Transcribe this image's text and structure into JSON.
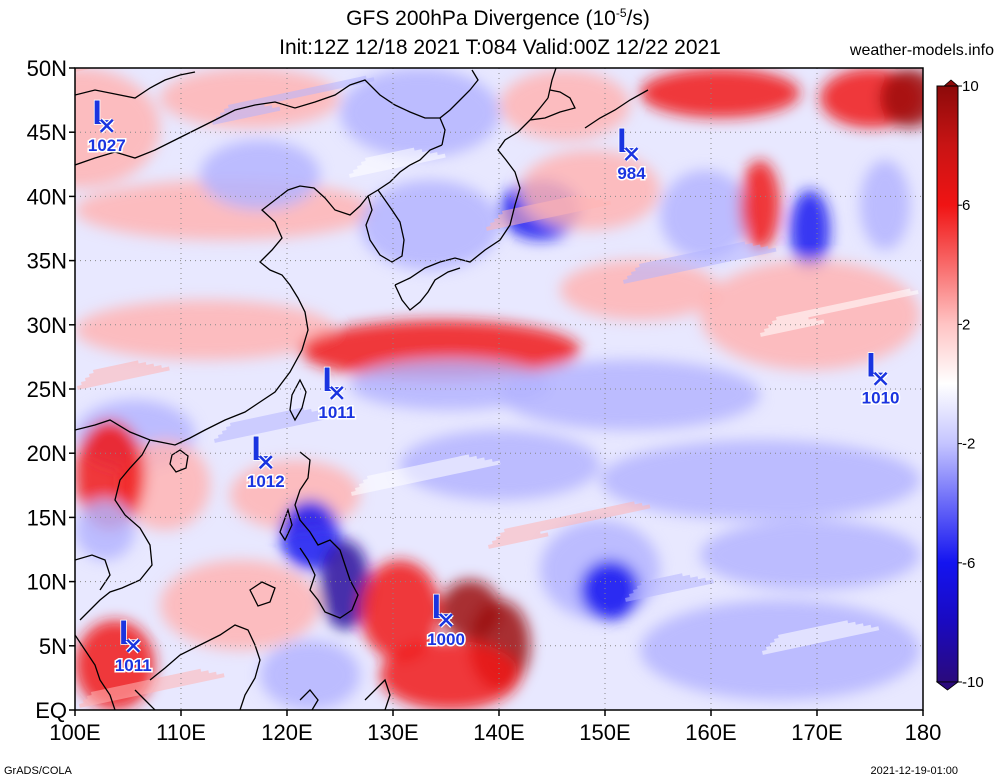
{
  "header": {
    "title_line1": "GFS 200hPa Divergence (10",
    "title_exp": "-5",
    "title_unit_end": "/s)",
    "title_line2": "Init:12Z 12/18 2021 T:084 Valid:00Z 12/22 2021",
    "site": "weather-models.info"
  },
  "footer": {
    "left": "GrADS/COLA",
    "right": "2021-12-19-01:00"
  },
  "map": {
    "lon_ticks": [
      "100E",
      "110E",
      "120E",
      "130E",
      "140E",
      "150E",
      "160E",
      "170E",
      "180"
    ],
    "lat_ticks": [
      "EQ",
      "5N",
      "10N",
      "15N",
      "20N",
      "25N",
      "30N",
      "35N",
      "40N",
      "45N",
      "50N"
    ],
    "lon_range": [
      100,
      180
    ],
    "lat_range": [
      0,
      50
    ],
    "grid": true,
    "field": "200hPa divergence",
    "palette": {
      "strong_negative": "#2a0a9c",
      "negative": "#1414f0",
      "weak_negative": "#b4b4ff",
      "neutral": "#ffffff",
      "weak_positive": "#ffb4b4",
      "positive": "#f01414",
      "strong_positive": "#9c0a0a"
    },
    "lows": [
      {
        "label": "L",
        "value": "1027",
        "lon": 103,
        "lat": 45.5
      },
      {
        "label": "L",
        "value": "984",
        "lon": 152.5,
        "lat": 43.3
      },
      {
        "label": "L",
        "value": "1011",
        "lon": 124.7,
        "lat": 24.7
      },
      {
        "label": "L",
        "value": "1012",
        "lon": 118,
        "lat": 19.3
      },
      {
        "label": "L",
        "value": "1010",
        "lon": 176,
        "lat": 25.8
      },
      {
        "label": "L",
        "value": "1011",
        "lon": 105.5,
        "lat": 5
      },
      {
        "label": "L",
        "value": "1000",
        "lon": 135,
        "lat": 7
      }
    ]
  },
  "colorbar": {
    "labels": [
      "10",
      "6",
      "2",
      "-2",
      "-6",
      "-10"
    ],
    "values": [
      10,
      6,
      2,
      -2,
      -6,
      -10
    ]
  }
}
